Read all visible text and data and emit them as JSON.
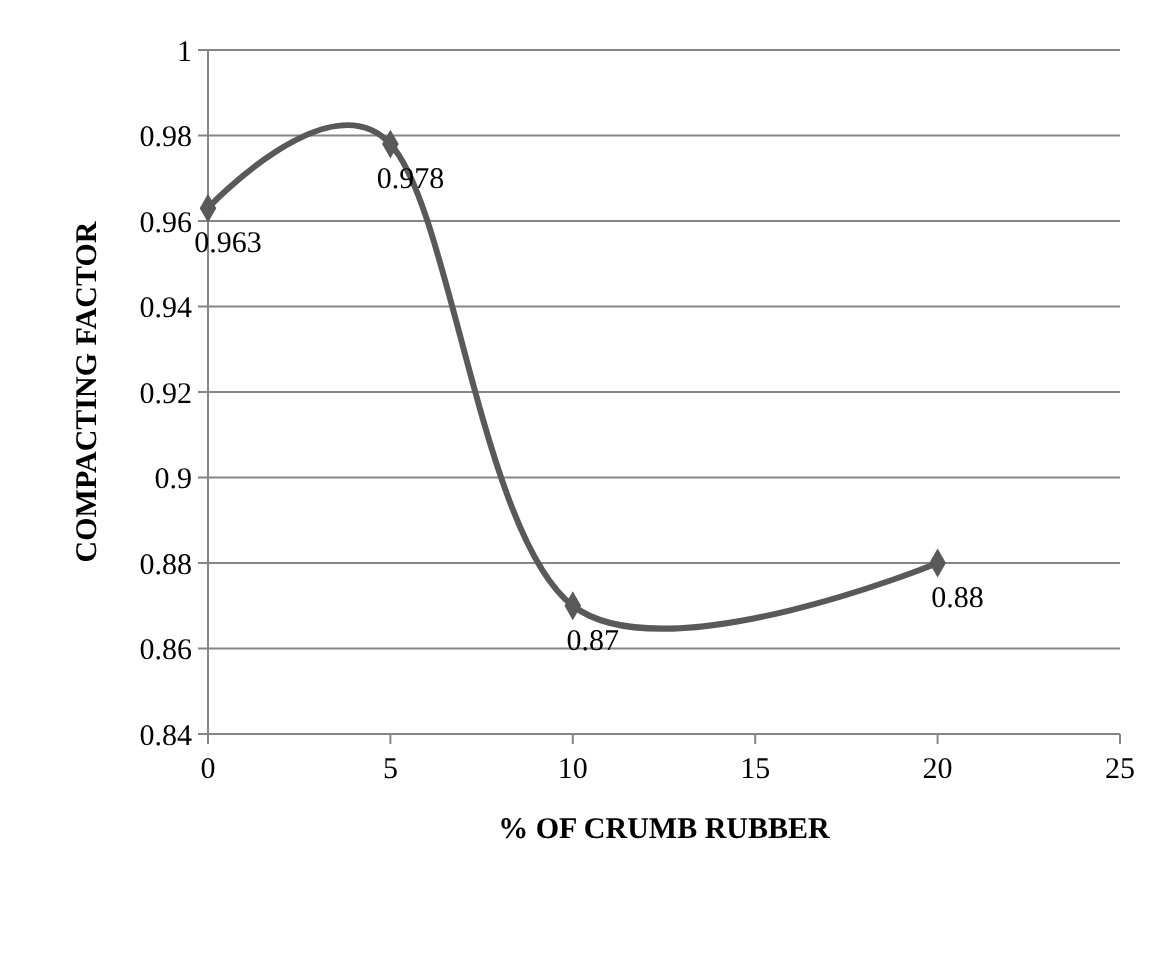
{
  "chart_data": {
    "type": "line",
    "xlabel": "% OF CRUMB RUBBER",
    "ylabel": "COMPACTING FACTOR",
    "x": [
      0,
      5,
      10,
      20
    ],
    "series": [
      {
        "color": "#595959",
        "values": [
          0.963,
          0.978,
          0.87,
          0.88
        ]
      }
    ],
    "xlim": [
      0,
      25
    ],
    "xticks": [
      0,
      5,
      10,
      15,
      20,
      25
    ],
    "ylim": [
      0.84,
      1
    ],
    "yticks": [
      0.84,
      0.86,
      0.88,
      0.9,
      0.92,
      0.94,
      0.96,
      0.98,
      1
    ],
    "grid": "y",
    "marker": "diamond",
    "line_style": "solid",
    "data_labels": true
  }
}
